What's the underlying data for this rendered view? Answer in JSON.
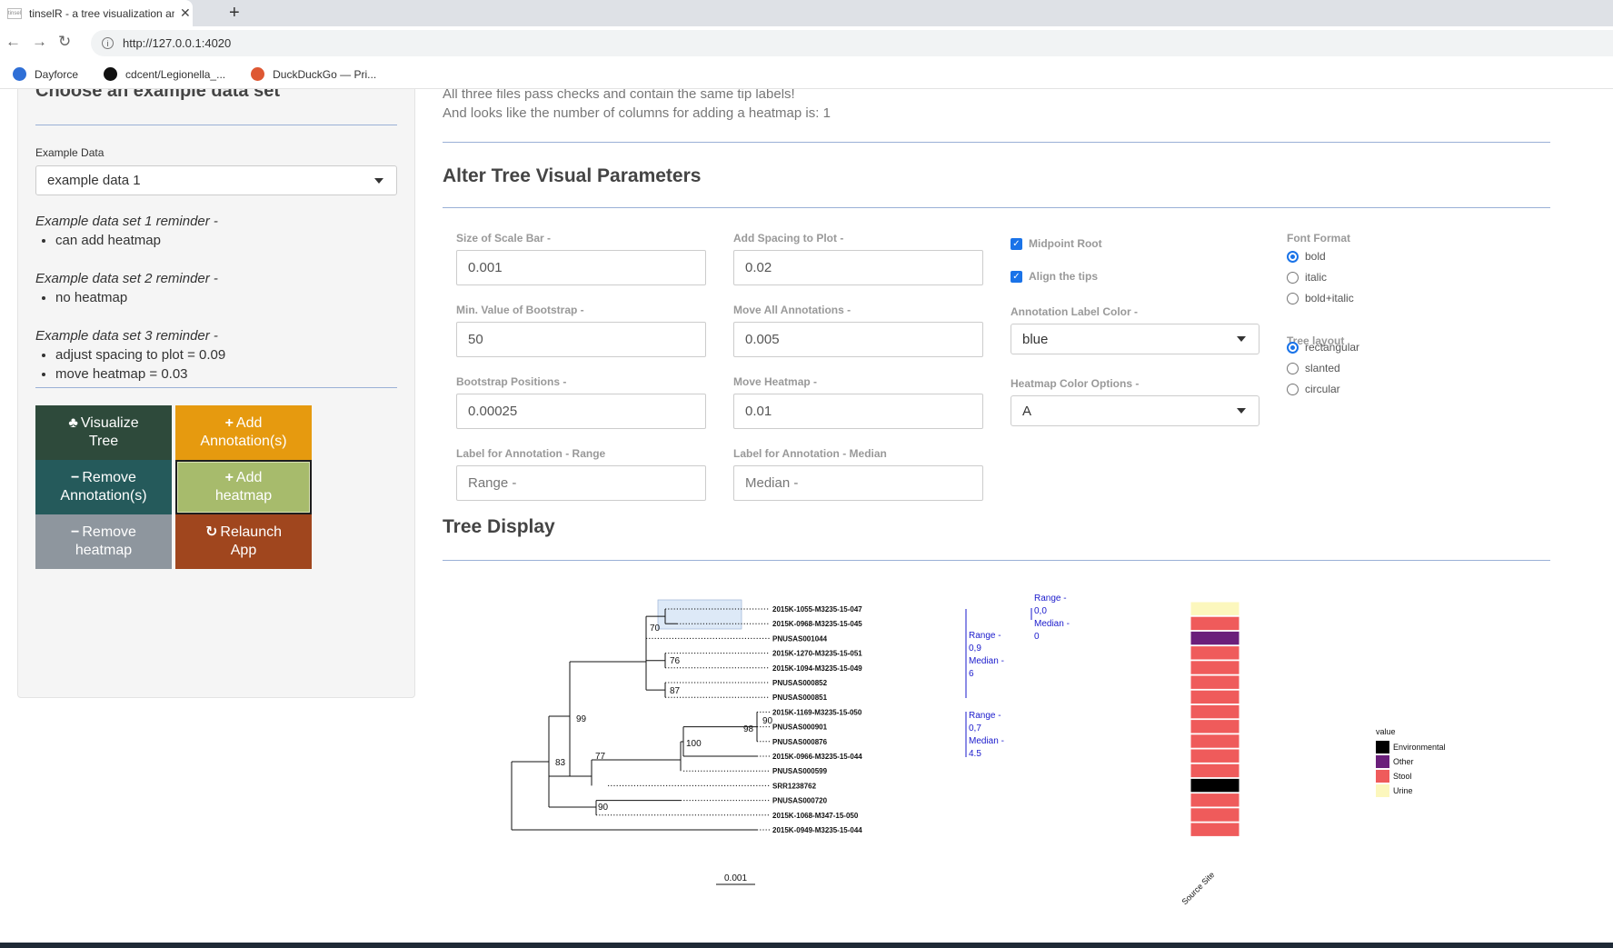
{
  "browser": {
    "tab_title": "tinselR - a tree visualization and a",
    "favicon_text": "tinsel",
    "url": "http://127.0.0.1:4020",
    "bookmarks": [
      {
        "label": "Dayforce",
        "icon": "dayforce-icon",
        "color": "#2f6fd6"
      },
      {
        "label": "cdcent/Legionella_...",
        "icon": "github-icon",
        "color": "#111111"
      },
      {
        "label": "DuckDuckGo — Pri...",
        "icon": "duckduckgo-icon",
        "color": "#de5833"
      }
    ]
  },
  "sidebar": {
    "heading": "Choose an example data set",
    "example_label": "Example Data",
    "example_value": "example data 1",
    "reminders": [
      {
        "title": "Example data set 1 reminder -",
        "items": [
          "can add heatmap"
        ]
      },
      {
        "title": "Example data set 2 reminder -",
        "items": [
          "no heatmap"
        ]
      },
      {
        "title": "Example data set 3 reminder -",
        "items": [
          "adjust spacing to plot = 0.09",
          "move heatmap = 0.03"
        ]
      }
    ],
    "buttons": [
      {
        "glyph": "♣",
        "label": "Visualize Tree",
        "lines": [
          "Visualize",
          "Tree"
        ],
        "color": "#2e4a3b",
        "icon": "tree-icon"
      },
      {
        "glyph": "+",
        "label": "Add Annotation(s)",
        "lines": [
          "Add",
          "Annotation(s)"
        ],
        "color": "#e69a0f",
        "icon": "plus-icon"
      },
      {
        "glyph": "−",
        "label": "Remove Annotation(s)",
        "lines": [
          "Remove",
          "Annotation(s)"
        ],
        "color": "#255a5b",
        "icon": "minus-icon"
      },
      {
        "glyph": "+",
        "label": "Add heatmap",
        "lines": [
          "Add",
          "heatmap"
        ],
        "color": "#a7bb6c",
        "icon": "plus-icon"
      },
      {
        "glyph": "−",
        "label": "Remove heatmap",
        "lines": [
          "Remove",
          "heatmap"
        ],
        "color": "#8e969e",
        "icon": "minus-icon"
      },
      {
        "glyph": "↻",
        "label": "Relaunch App",
        "lines": [
          "Relaunch",
          "App"
        ],
        "color": "#a0461e",
        "icon": "refresh-icon"
      }
    ]
  },
  "main": {
    "status_line1": "All three files pass checks and contain the same tip labels!",
    "status_line2": "And looks like the number of columns for adding a heatmap is:  1",
    "params_heading": "Alter Tree Visual Parameters",
    "fields": [
      {
        "label": "Size of Scale Bar -",
        "value": "0.001"
      },
      {
        "label": "Add Spacing to Plot -",
        "value": "0.02"
      },
      {
        "label": "Min. Value of Bootstrap -",
        "value": "50"
      },
      {
        "label": "Move All Annotations -",
        "value": "0.005"
      },
      {
        "label": "Bootstrap Positions -",
        "value": "0.00025"
      },
      {
        "label": "Move Heatmap -",
        "value": "0.01"
      },
      {
        "label": "Label for Annotation - Range",
        "value": "Range -"
      },
      {
        "label": "Label for Annotation - Median",
        "value": "Median -"
      }
    ],
    "checkboxes": [
      {
        "label": "Midpoint Root",
        "checked": true
      },
      {
        "label": "Align the tips",
        "checked": true
      }
    ],
    "annotation_color_label": "Annotation Label Color -",
    "annotation_color_value": "blue",
    "heatmap_color_label": "Heatmap Color Options -",
    "heatmap_color_value": "A",
    "font_format_label": "Font Format",
    "font_format_options": [
      "bold",
      "italic",
      "bold+italic"
    ],
    "font_format_selected": "bold",
    "layout_label": "Tree layout",
    "layout_options": [
      "rectangular",
      "slanted",
      "circular"
    ],
    "layout_selected": "rectangular",
    "tree_heading": "Tree Display"
  },
  "tree": {
    "tips": [
      "2015K-1055-M3235-15-047",
      "2015K-0968-M3235-15-045",
      "PNUSAS001044",
      "2015K-1270-M3235-15-051",
      "2015K-1094-M3235-15-049",
      "PNUSAS000852",
      "PNUSAS000851",
      "2015K-1169-M3235-15-050",
      "PNUSAS000901",
      "PNUSAS000876",
      "2015K-0966-M3235-15-044",
      "PNUSAS000599",
      "SRR1238762",
      "PNUSAS000720",
      "2015K-1068-M347-15-050",
      "2015K-0949-M3235-15-044"
    ],
    "bootstraps": [
      "70",
      "76",
      "87",
      "90",
      "98",
      "100",
      "77",
      "99",
      "83",
      "90"
    ],
    "scale_label": "0.001",
    "annotations": [
      {
        "range_label": "Range -",
        "range_value": "0,9",
        "median_label": "Median -",
        "median_value": "6"
      },
      {
        "range_label": "Range -",
        "range_value": "0,7",
        "median_label": "Median -",
        "median_value": "4.5"
      },
      {
        "range_label": "Range -",
        "range_value": "0,0",
        "median_label": "Median -",
        "median_value": "0"
      }
    ],
    "heatmap_column": "Source Site",
    "heatmap_values": [
      "Urine",
      "Stool",
      "Other",
      "Stool",
      "Stool",
      "Stool",
      "Stool",
      "Stool",
      "Stool",
      "Stool",
      "Stool",
      "Stool",
      "Environmental",
      "Stool",
      "Stool",
      "Stool"
    ],
    "legend_title": "value",
    "legend": [
      {
        "label": "Environmental",
        "color": "#000000"
      },
      {
        "label": "Other",
        "color": "#6b1f7b"
      },
      {
        "label": "Stool",
        "color": "#ef5b5b"
      },
      {
        "label": "Urine",
        "color": "#fcf7bd"
      }
    ]
  }
}
